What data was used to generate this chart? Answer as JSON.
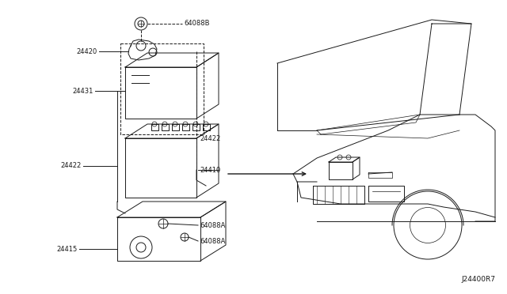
{
  "bg_color": "#ffffff",
  "line_color": "#1a1a1a",
  "fig_width": 6.4,
  "fig_height": 3.72,
  "dpi": 100,
  "diagram_code": "J24400R7",
  "labels": {
    "bolt_top": "64088B",
    "cable": "24420",
    "cover": "24431",
    "vent_right": "24422",
    "battery": "24410",
    "vent_left": "24422",
    "tray": "24415",
    "bolt1": "64088A",
    "bolt2": "64088A"
  }
}
